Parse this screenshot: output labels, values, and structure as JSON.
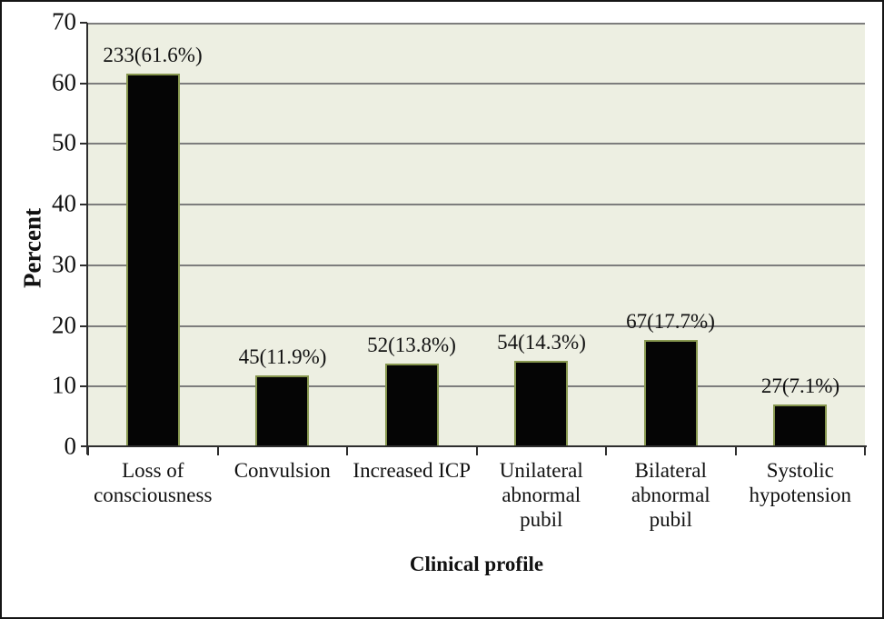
{
  "figure": {
    "background": "#ffffff",
    "border_color": "#151515"
  },
  "chart_data": {
    "type": "bar",
    "title": "",
    "categories": [
      "Loss of consciousness",
      "Convulsion",
      "Increased ICP",
      "Unilateral abnormal pubil",
      "Bilateral abnormal pubil",
      "Systolic hypotension"
    ],
    "category_lines": [
      [
        "Loss of",
        "consciousness"
      ],
      [
        "Convulsion"
      ],
      [
        "Increased ICP"
      ],
      [
        "Unilateral",
        "abnormal",
        "pubil"
      ],
      [
        "Bilateral",
        "abnormal",
        "pubil"
      ],
      [
        "Systolic",
        "hypotension"
      ]
    ],
    "counts": [
      233,
      45,
      52,
      54,
      67,
      27
    ],
    "values": [
      61.6,
      11.9,
      13.8,
      14.3,
      17.7,
      7.1
    ],
    "bar_labels": [
      "233(61.6%)",
      "45(11.9%)",
      "52(13.8%)",
      "54(14.3%)",
      "67(17.7%)",
      "27(7.1%)"
    ],
    "xlabel": "Clinical profile",
    "ylabel": "Percent",
    "ylim": [
      0,
      70
    ],
    "yticks": [
      0,
      10,
      20,
      30,
      40,
      50,
      60,
      70
    ],
    "grid": true,
    "legend_position": "none",
    "colors": {
      "bar_fill": "#050505",
      "bar_border": "#87974f",
      "plot_bg": "#edefe2",
      "gridline": "#7d7d7d",
      "axis": "#2e2e2e",
      "text": "#111111"
    }
  }
}
